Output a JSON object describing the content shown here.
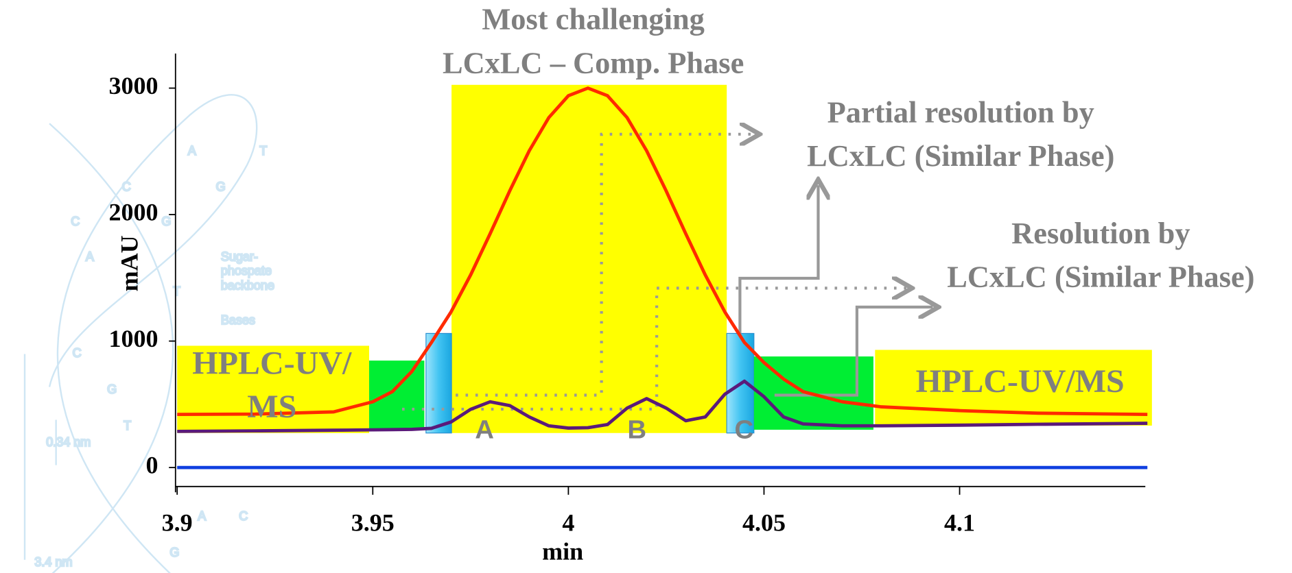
{
  "chart_data": {
    "type": "line",
    "title": [
      "Most challenging",
      "LCxLC – Comp. Phase"
    ],
    "x_label": "min",
    "y_label": "mAU",
    "x": [
      3.9,
      3.92,
      3.94,
      3.95,
      3.955,
      3.96,
      3.965,
      3.97,
      3.975,
      3.98,
      3.985,
      3.99,
      3.995,
      4.0,
      4.005,
      4.01,
      4.015,
      4.02,
      4.025,
      4.03,
      4.035,
      4.04,
      4.045,
      4.05,
      4.055,
      4.06,
      4.07,
      4.08,
      4.1,
      4.12,
      4.148
    ],
    "series": [
      {
        "color": "#ff2a00",
        "values": [
          420,
          423,
          440,
          520,
          600,
          760,
          989,
          1230,
          1522,
          1849,
          2187,
          2505,
          2767,
          2940,
          3000,
          2940,
          2767,
          2505,
          2187,
          1849,
          1522,
          1230,
          989,
          830,
          700,
          600,
          520,
          480,
          450,
          430,
          420
        ]
      },
      {
        "color": "#5a1a7a",
        "values": [
          286,
          290,
          295,
          298,
          300,
          302,
          310,
          360,
          460,
          520,
          490,
          400,
          330,
          312,
          315,
          340,
          470,
          545,
          470,
          370,
          400,
          580,
          683,
          560,
          400,
          345,
          330,
          330,
          335,
          342,
          350
        ]
      },
      {
        "color": "#1040e0",
        "values": [
          0,
          0,
          0,
          0,
          0,
          0,
          0,
          0,
          0,
          0,
          0,
          0,
          0,
          0,
          0,
          0,
          0,
          0,
          0,
          0,
          0,
          0,
          0,
          0,
          0,
          0,
          0,
          0,
          0,
          0,
          0
        ]
      }
    ],
    "xlim": [
      3.9,
      4.15
    ],
    "xticks": [
      3.9,
      3.95,
      4,
      4.05,
      4.1
    ],
    "ylim": [
      -150,
      3270
    ],
    "yticks": [
      0,
      1000,
      2000,
      3000
    ],
    "grid": false,
    "peak_labels": [
      "A",
      "B",
      "C"
    ],
    "box_labels": [
      [
        "HPLC-UV/",
        "MS"
      ],
      [
        "HPLC-UV/MS"
      ]
    ],
    "annotations": [
      [
        "Partial resolution by",
        "LCxLC (Similar Phase)"
      ],
      [
        "Resolution by",
        "LCxLC (Similar Phase)"
      ]
    ],
    "background_labels": [
      "Sugar-",
      "phospate",
      "backbone",
      "Bases",
      "0.34 nm",
      "3.4 nm",
      "A",
      "T",
      "C",
      "G",
      "C",
      "G",
      "A",
      "T",
      "C",
      "G",
      "T",
      "A",
      "C",
      "G"
    ]
  }
}
